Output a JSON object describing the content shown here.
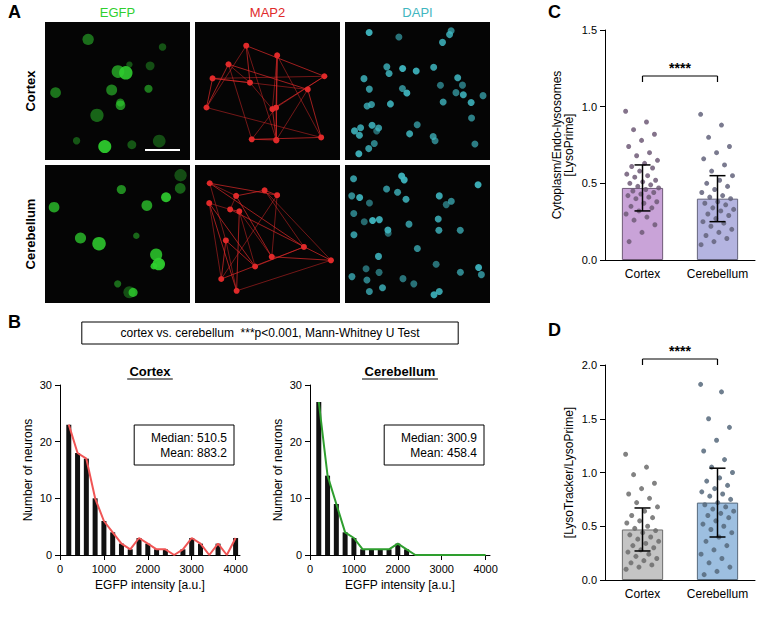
{
  "panel_labels": [
    "A",
    "B",
    "C",
    "D"
  ],
  "micrograph": {
    "columns": [
      {
        "label": "EGFP",
        "color": "#2fcf2f"
      },
      {
        "label": "MAP2",
        "color": "#e02a2a"
      },
      {
        "label": "DAPI",
        "color": "#3fb6c0"
      }
    ],
    "rows": [
      "Cortex",
      "Cerebellum"
    ]
  },
  "panel_B_note": "cortex vs. cerebellum  ***p<0.001, Mann-Whitney U Test",
  "chart_data": [
    {
      "type": "histogram",
      "title": "Cortex",
      "xlabel": "EGFP intensity [a.u.]",
      "ylabel": "Number of neurons",
      "bins": [
        100,
        300,
        500,
        700,
        900,
        1100,
        1300,
        1500,
        1700,
        1900,
        2100,
        2300,
        2500,
        2700,
        2900,
        3100,
        3300,
        3500,
        3700,
        3900,
        4100
      ],
      "counts": [
        23,
        18,
        17,
        10,
        6,
        4,
        2,
        1,
        3,
        2,
        1,
        1,
        0,
        1,
        3,
        2,
        0,
        2,
        0,
        3
      ],
      "color": "#f05555",
      "xlim": [
        0,
        4100
      ],
      "xticks": [
        0,
        1000,
        2000,
        3000,
        4000
      ],
      "ylim": [
        0,
        30
      ],
      "yticks": [
        0,
        10,
        20,
        30
      ],
      "grid": false,
      "annotations": [
        "Median: 510.5",
        "Mean: 883.2"
      ]
    },
    {
      "type": "histogram",
      "title": "Cerebellum",
      "xlabel": "EGFP intensity [a.u.]",
      "ylabel": "Number of neurons",
      "bins": [
        100,
        300,
        500,
        700,
        900,
        1100,
        1300,
        1500,
        1700,
        1900,
        2100,
        2300,
        2500,
        2700,
        2900,
        3100,
        3300,
        3500,
        3700,
        3900,
        4100
      ],
      "counts": [
        27,
        14,
        9,
        4,
        3,
        1,
        1,
        1,
        1,
        2,
        1,
        0,
        0,
        0,
        0,
        0,
        0,
        0,
        0,
        0
      ],
      "color": "#2e9e2e",
      "xlim": [
        0,
        4100
      ],
      "xticks": [
        0,
        1000,
        2000,
        3000,
        4000
      ],
      "ylim": [
        0,
        30
      ],
      "yticks": [
        0,
        10,
        20,
        30
      ],
      "grid": false,
      "annotations": [
        "Median: 300.9",
        "Mean: 458.4"
      ]
    },
    {
      "type": "bar",
      "ylabel": "Cytoplasm/Endo-lysosomes [LysoPrime]",
      "categories": [
        "Cortex",
        "Cerebellum"
      ],
      "values": [
        0.47,
        0.4
      ],
      "errors": [
        0.15,
        0.15
      ],
      "points": [
        [
          0.97,
          0.9,
          0.85,
          0.82,
          0.78,
          0.74,
          0.7,
          0.68,
          0.65,
          0.63,
          0.61,
          0.6,
          0.58,
          0.56,
          0.55,
          0.54,
          0.52,
          0.51,
          0.5,
          0.49,
          0.48,
          0.47,
          0.46,
          0.45,
          0.44,
          0.43,
          0.42,
          0.41,
          0.4,
          0.38,
          0.37,
          0.35,
          0.34,
          0.32,
          0.3,
          0.28,
          0.26,
          0.23,
          0.18,
          0.12
        ],
        [
          0.95,
          0.88,
          0.8,
          0.74,
          0.7,
          0.66,
          0.62,
          0.58,
          0.55,
          0.52,
          0.5,
          0.48,
          0.46,
          0.44,
          0.42,
          0.41,
          0.4,
          0.38,
          0.37,
          0.36,
          0.34,
          0.33,
          0.32,
          0.3,
          0.29,
          0.27,
          0.25,
          0.24,
          0.22,
          0.2,
          0.18,
          0.16,
          0.14,
          0.12,
          0.1
        ]
      ],
      "colors": [
        "#c9a3d8",
        "#b4b4e0"
      ],
      "ylim": [
        0,
        1.5
      ],
      "yticks": [
        {
          "value": 0,
          "label": "0.0"
        },
        {
          "value": 0.5,
          "label": "0.5"
        },
        {
          "value": 1,
          "label": "1.0"
        },
        {
          "value": 1.5,
          "label": "1.5"
        }
      ],
      "grid": false,
      "annotations": [
        "****"
      ]
    },
    {
      "type": "bar",
      "ylabel": "[LysoTracker/LysoPrime]",
      "categories": [
        "Cortex",
        "Cerebellum"
      ],
      "values": [
        0.47,
        0.72
      ],
      "errors": [
        0.2,
        0.32
      ],
      "points": [
        [
          1.17,
          1.05,
          0.98,
          0.9,
          0.85,
          0.8,
          0.76,
          0.72,
          0.68,
          0.64,
          0.6,
          0.58,
          0.55,
          0.53,
          0.5,
          0.48,
          0.46,
          0.44,
          0.42,
          0.4,
          0.38,
          0.36,
          0.34,
          0.32,
          0.3,
          0.28,
          0.26,
          0.24,
          0.22,
          0.2,
          0.18,
          0.16,
          0.14,
          0.12,
          0.1
        ],
        [
          1.82,
          1.75,
          1.5,
          1.42,
          1.3,
          1.2,
          1.12,
          1.05,
          1.0,
          0.95,
          0.92,
          0.88,
          0.85,
          0.82,
          0.8,
          0.78,
          0.75,
          0.72,
          0.7,
          0.68,
          0.66,
          0.64,
          0.62,
          0.6,
          0.58,
          0.55,
          0.52,
          0.5,
          0.47,
          0.44,
          0.4,
          0.36,
          0.32,
          0.28,
          0.24,
          0.2,
          0.16,
          0.12,
          0.08,
          0.05
        ]
      ],
      "colors": [
        "#c4c4c4",
        "#9dbfe0"
      ],
      "ylim": [
        0,
        2
      ],
      "yticks": [
        {
          "value": 0,
          "label": "0.0"
        },
        {
          "value": 0.5,
          "label": "0.5"
        },
        {
          "value": 1,
          "label": "1.0"
        },
        {
          "value": 1.5,
          "label": "1.5"
        },
        {
          "value": 2,
          "label": "2.0"
        }
      ],
      "grid": false,
      "annotations": [
        "****"
      ]
    }
  ]
}
